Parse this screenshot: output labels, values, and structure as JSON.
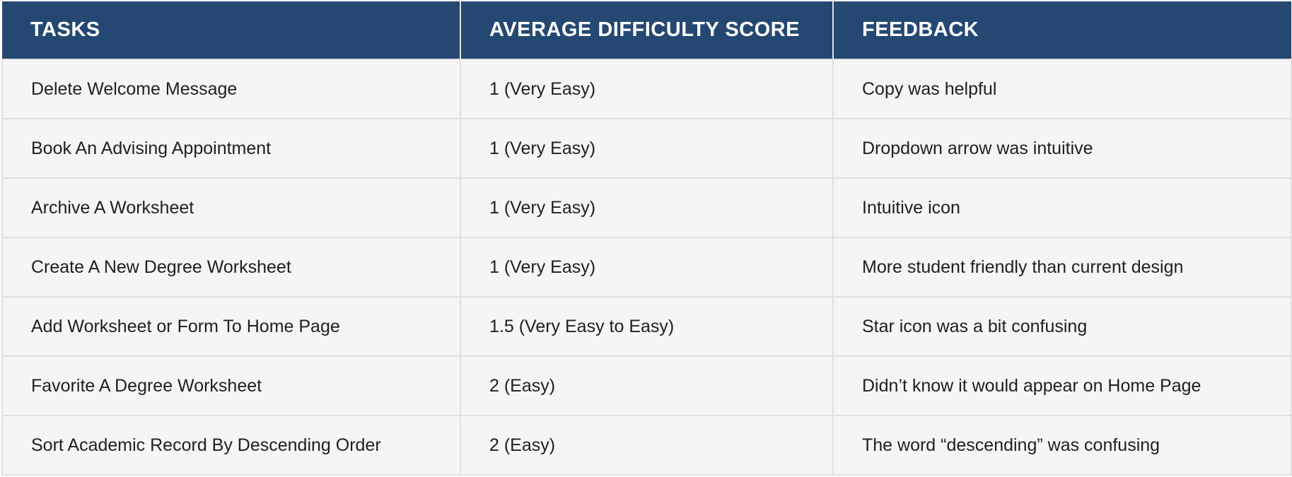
{
  "header": {
    "tasks": "TASKS",
    "score": "AVERAGE DIFFICULTY SCORE",
    "feedback": "FEEDBACK"
  },
  "rows": [
    {
      "task": "Delete Welcome Message",
      "score": "1 (Very Easy)",
      "feedback": "Copy was helpful"
    },
    {
      "task": "Book An Advising Appointment",
      "score": "1 (Very Easy)",
      "feedback": "Dropdown arrow was intuitive"
    },
    {
      "task": "Archive A Worksheet",
      "score": "1 (Very Easy)",
      "feedback": "Intuitive icon"
    },
    {
      "task": "Create A New Degree Worksheet",
      "score": "1 (Very Easy)",
      "feedback": "More student friendly than current design"
    },
    {
      "task": "Add Worksheet or Form To Home Page",
      "score": "1.5 (Very Easy to Easy)",
      "feedback": "Star icon was a bit confusing"
    },
    {
      "task": "Favorite A Degree Worksheet",
      "score": "2 (Easy)",
      "feedback": "Didn’t know it would appear on Home Page"
    },
    {
      "task": "Sort Academic Record By Descending Order",
      "score": "2 (Easy)",
      "feedback": "The word “descending” was confusing"
    }
  ],
  "colors": {
    "header_bg": "#244872",
    "header_text": "#ffffff",
    "row_bg": "#f5f5f5",
    "grid_line": "#e0e0e0"
  }
}
